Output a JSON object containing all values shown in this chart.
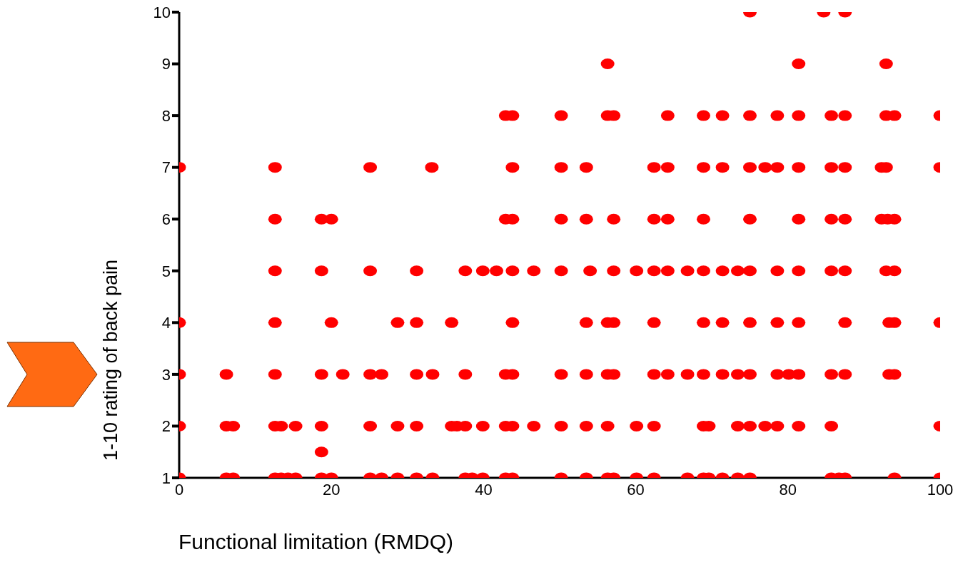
{
  "chart_data": {
    "type": "scatter",
    "xlabel": "Functional limitation (RMDQ)",
    "ylabel": "1-10 rating of back pain",
    "color": "#ff0000",
    "marker": "circle",
    "xlim": [
      0,
      100
    ],
    "xticks": [
      0,
      20,
      40,
      60,
      80,
      100
    ],
    "ylim": [
      1,
      10
    ],
    "yticks": [
      1,
      2,
      3,
      4,
      5,
      6,
      7,
      8,
      9,
      10
    ],
    "x": [
      75.0,
      84.7,
      87.5,
      56.3,
      81.4,
      92.9,
      42.9,
      43.8,
      50.2,
      56.3,
      57.1,
      64.2,
      68.9,
      71.4,
      75.0,
      78.6,
      81.4,
      85.7,
      87.5,
      92.9,
      94.0,
      100,
      0,
      12.6,
      25.1,
      33.2,
      43.8,
      50.2,
      53.5,
      62.4,
      64.2,
      68.9,
      71.4,
      75.0,
      77.0,
      78.6,
      81.4,
      85.7,
      87.5,
      92.3,
      92.9,
      100,
      12.6,
      18.7,
      20.0,
      42.9,
      43.8,
      50.2,
      53.5,
      57.1,
      62.4,
      64.2,
      68.9,
      75.0,
      81.4,
      85.7,
      87.5,
      92.3,
      93.1,
      94.0,
      12.6,
      18.7,
      25.1,
      31.2,
      37.6,
      39.9,
      41.7,
      43.8,
      46.6,
      50.2,
      54.0,
      57.1,
      60.1,
      62.4,
      64.2,
      66.8,
      68.9,
      71.4,
      73.4,
      75.0,
      78.6,
      81.4,
      85.7,
      87.5,
      92.9,
      94.0,
      0,
      12.6,
      20.0,
      28.7,
      31.2,
      35.8,
      43.8,
      53.5,
      56.3,
      57.1,
      62.4,
      68.9,
      71.4,
      75.0,
      78.6,
      81.4,
      87.5,
      93.3,
      94.0,
      100,
      0,
      6.2,
      12.6,
      18.7,
      21.5,
      25.1,
      26.6,
      31.2,
      33.3,
      37.6,
      42.9,
      43.8,
      50.2,
      53.5,
      56.3,
      57.1,
      62.4,
      64.2,
      66.8,
      68.9,
      71.4,
      73.4,
      75.0,
      78.6,
      80.1,
      81.4,
      85.7,
      87.5,
      93.3,
      94.0,
      0,
      6.2,
      7.1,
      12.6,
      13.4,
      15.3,
      18.7,
      25.1,
      28.7,
      31.2,
      35.8,
      36.5,
      37.6,
      39.9,
      42.9,
      43.8,
      46.6,
      50.2,
      53.5,
      56.3,
      60.1,
      62.4,
      68.9,
      69.6,
      73.4,
      75.0,
      77.0,
      78.6,
      81.4,
      85.7,
      100,
      18.7,
      0,
      6.2,
      7.1,
      12.6,
      13.4,
      14.3,
      15.3,
      18.7,
      20.0,
      25.1,
      26.6,
      28.7,
      31.2,
      33.3,
      37.6,
      38.5,
      39.9,
      42.9,
      43.8,
      50.2,
      53.5,
      56.3,
      57.1,
      60.1,
      62.4,
      66.8,
      68.9,
      69.6,
      71.4,
      73.4,
      75.0,
      85.7,
      86.7,
      87.5,
      94.0,
      100
    ],
    "values": [
      10,
      10,
      10,
      9,
      9,
      9,
      8,
      8,
      8,
      8,
      8,
      8,
      8,
      8,
      8,
      8,
      8,
      8,
      8,
      8,
      8,
      8,
      7,
      7,
      7,
      7,
      7,
      7,
      7,
      7,
      7,
      7,
      7,
      7,
      7,
      7,
      7,
      7,
      7,
      7,
      7,
      7,
      6,
      6,
      6,
      6,
      6,
      6,
      6,
      6,
      6,
      6,
      6,
      6,
      6,
      6,
      6,
      6,
      6,
      6,
      5,
      5,
      5,
      5,
      5,
      5,
      5,
      5,
      5,
      5,
      5,
      5,
      5,
      5,
      5,
      5,
      5,
      5,
      5,
      5,
      5,
      5,
      5,
      5,
      5,
      5,
      4,
      4,
      4,
      4,
      4,
      4,
      4,
      4,
      4,
      4,
      4,
      4,
      4,
      4,
      4,
      4,
      4,
      4,
      4,
      4,
      3,
      3,
      3,
      3,
      3,
      3,
      3,
      3,
      3,
      3,
      3,
      3,
      3,
      3,
      3,
      3,
      3,
      3,
      3,
      3,
      3,
      3,
      3,
      3,
      3,
      3,
      3,
      3,
      3,
      3,
      2,
      2,
      2,
      2,
      2,
      2,
      2,
      2,
      2,
      2,
      2,
      2,
      2,
      2,
      2,
      2,
      2,
      2,
      2,
      2,
      2,
      2,
      2,
      2,
      2,
      2,
      2,
      2,
      2,
      2,
      2,
      1.5,
      1,
      1,
      1,
      1,
      1,
      1,
      1,
      1,
      1,
      1,
      1,
      1,
      1,
      1,
      1,
      1,
      1,
      1,
      1,
      1,
      1,
      1,
      1,
      1,
      1,
      1,
      1,
      1,
      1,
      1,
      1,
      1,
      1,
      1,
      1,
      1
    ]
  }
}
